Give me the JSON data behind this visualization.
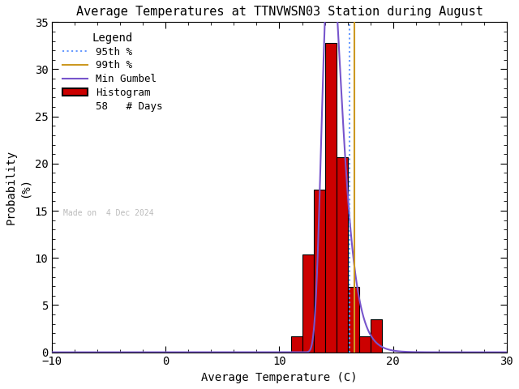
{
  "title": "Average Temperatures at TTNVWSN03 Station during August",
  "xlabel": "Average Temperature (C)",
  "ylabel_top": "Probability",
  "ylabel_bottom": "(%)",
  "xlim": [
    -10,
    30
  ],
  "ylim": [
    0,
    35
  ],
  "xticks": [
    -10,
    0,
    10,
    20,
    30
  ],
  "yticks": [
    0,
    5,
    10,
    15,
    20,
    25,
    30,
    35
  ],
  "n_days": 58,
  "made_on": "Made on  4 Dec 2024",
  "bar_edges": [
    10,
    11,
    12,
    13,
    14,
    15,
    16,
    17,
    18,
    19,
    20
  ],
  "bar_heights": [
    0.0,
    1.72,
    10.34,
    17.24,
    32.76,
    20.69,
    6.9,
    1.72,
    3.45,
    0.0
  ],
  "bar_color": "#cc0000",
  "bar_edgecolor": "#000000",
  "gumbel_mu": 14.5,
  "gumbel_beta": 0.85,
  "percentile_95": 16.2,
  "percentile_99": 16.6,
  "line_95_color": "#6699ff",
  "line_99_color": "#cc9922",
  "gumbel_color": "#7755cc",
  "background_color": "#ffffff",
  "legend_title": "Legend",
  "legend_fontsize": 9,
  "title_fontsize": 11,
  "axis_fontsize": 10,
  "tick_fontsize": 10
}
